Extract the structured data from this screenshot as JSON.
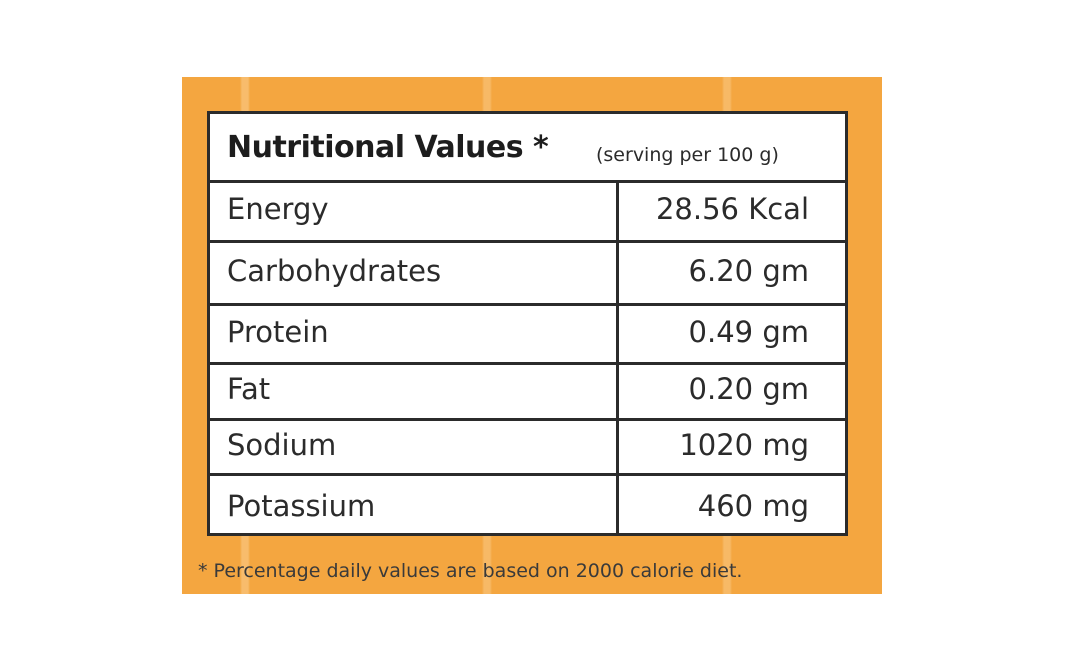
{
  "label": {
    "title": "Nutritional Values *",
    "serving_note": "(serving per 100 g)",
    "rows": [
      {
        "nutrient": "Energy",
        "value": "28.56 Kcal"
      },
      {
        "nutrient": "Carbohydrates",
        "value": "6.20 gm"
      },
      {
        "nutrient": "Protein",
        "value": "0.49 gm"
      },
      {
        "nutrient": "Fat",
        "value": "0.20  gm"
      },
      {
        "nutrient": "Sodium",
        "value": "1020 mg"
      },
      {
        "nutrient": "Potassium",
        "value": "460 mg"
      }
    ],
    "footnote": "* Percentage daily values are based on 2000 calorie diet."
  },
  "colors": {
    "background_panel": "#f4a640",
    "table_border": "#2b2b2b",
    "table_fill": "#ffffff"
  }
}
